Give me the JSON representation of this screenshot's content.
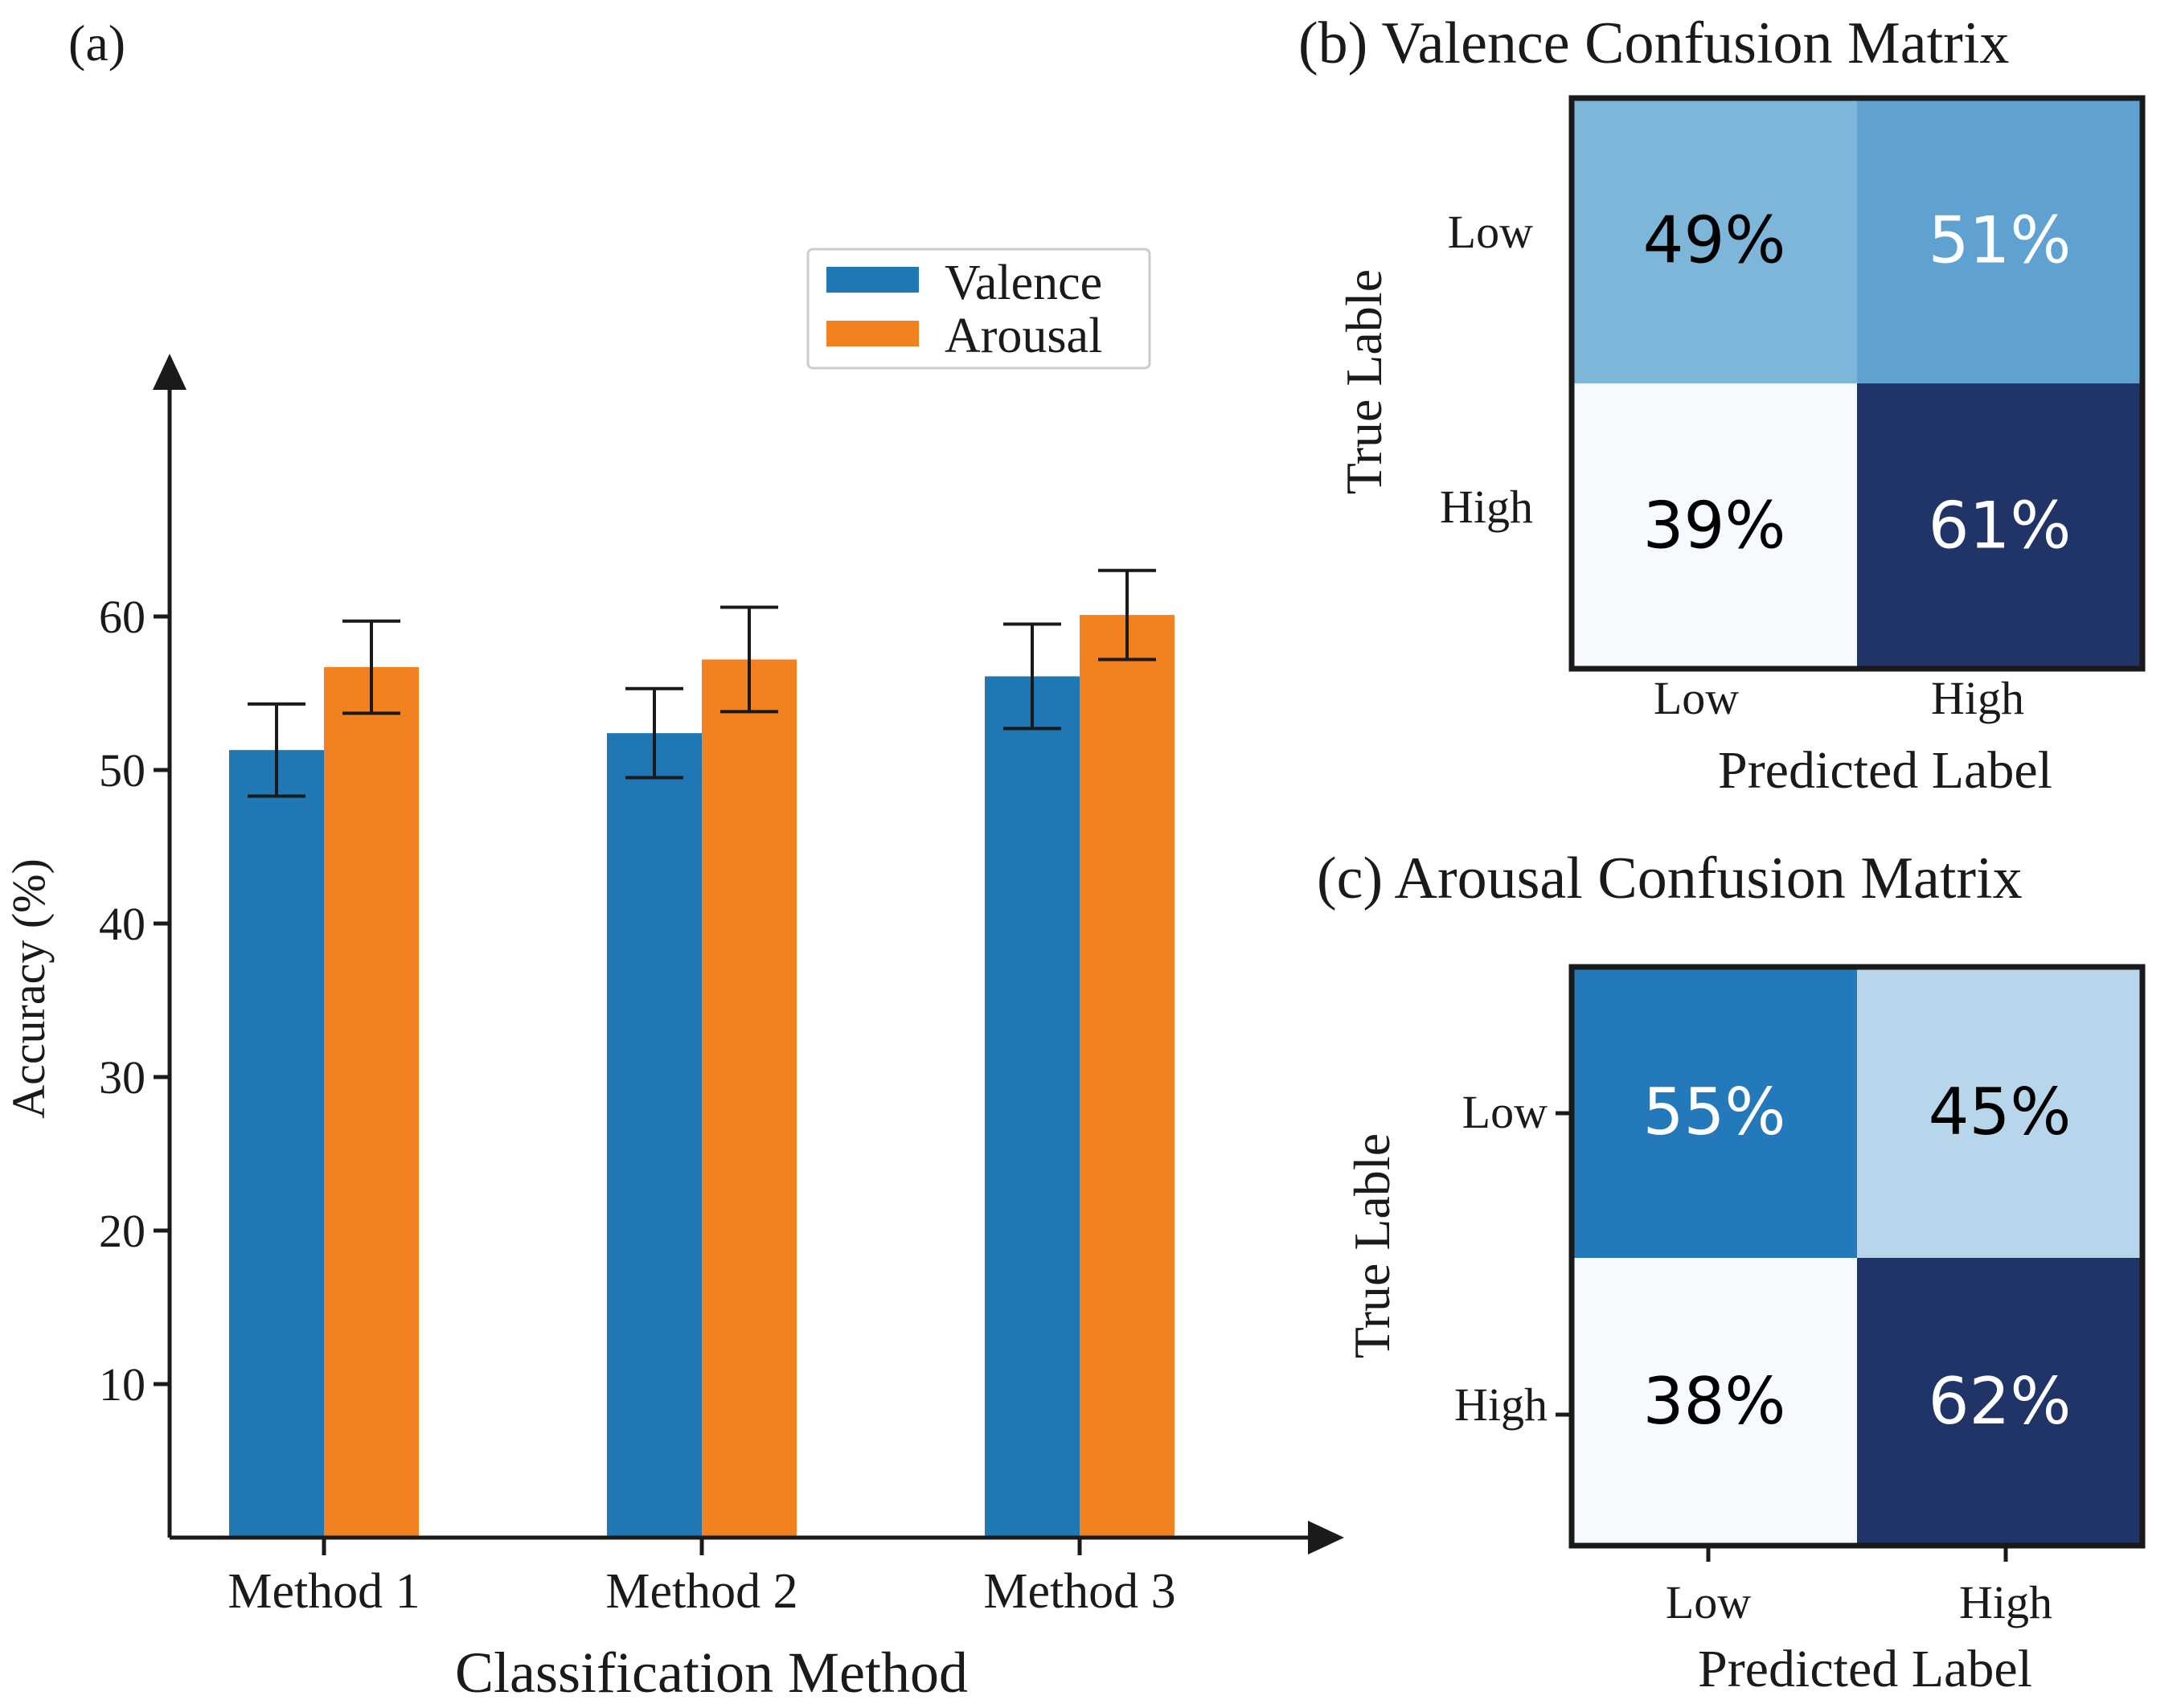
{
  "chart_data": [
    {
      "type": "bar",
      "panel_label": "(a)",
      "categories": [
        "Method 1",
        "Method 2",
        "Method 3"
      ],
      "series": [
        {
          "name": "Valence",
          "color": "#1f77b4",
          "values": [
            51.3,
            52.4,
            56.1
          ],
          "errors": [
            3.0,
            2.9,
            3.4
          ]
        },
        {
          "name": "Arousal",
          "color": "#f28122",
          "values": [
            56.7,
            57.2,
            60.1
          ],
          "errors": [
            3.0,
            3.4,
            2.9
          ]
        }
      ],
      "xlabel": "Classification Method",
      "ylabel": "Accuracy (%)",
      "yticks": [
        10,
        20,
        30,
        40,
        50,
        60
      ],
      "ylim": [
        0,
        78
      ],
      "legend_position": "top-right"
    },
    {
      "type": "heatmap",
      "title": "(b) Valence Confusion Matrix",
      "row_labels": [
        "Low",
        "High"
      ],
      "col_labels": [
        "Low",
        "High"
      ],
      "values": [
        [
          49,
          51
        ],
        [
          39,
          61
        ]
      ],
      "cell_text": [
        [
          "49%",
          "51%"
        ],
        [
          "39%",
          "61%"
        ]
      ],
      "cell_colors": [
        [
          "#7eb6d9",
          "#5fa2d1"
        ],
        [
          "#f6fafe",
          "#213467"
        ]
      ],
      "text_colors": [
        [
          "#000000",
          "#ffffff"
        ],
        [
          "#000000",
          "#ffffff"
        ]
      ],
      "xlabel": "Predicted Label",
      "ylabel": "True Lable"
    },
    {
      "type": "heatmap",
      "title": "(c) Arousal Confusion Matrix",
      "row_labels": [
        "Low",
        "High"
      ],
      "col_labels": [
        "Low",
        "High"
      ],
      "values": [
        [
          55,
          45
        ],
        [
          38,
          62
        ]
      ],
      "cell_text": [
        [
          "55%",
          "45%"
        ],
        [
          "38%",
          "62%"
        ]
      ],
      "cell_colors": [
        [
          "#2479ba",
          "#b8d6eb"
        ],
        [
          "#f6fafe",
          "#213467"
        ]
      ],
      "text_colors": [
        [
          "#ffffff",
          "#000000"
        ],
        [
          "#000000",
          "#ffffff"
        ]
      ],
      "xlabel": "Predicted Label",
      "ylabel": "True Lable"
    }
  ]
}
